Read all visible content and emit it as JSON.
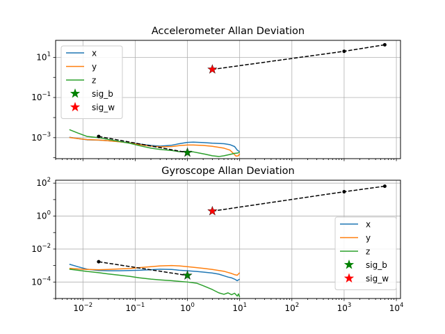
{
  "chart_data": [
    {
      "type": "line",
      "title": "Accelerometer Allan Deviation",
      "xscale": "log",
      "yscale": "log",
      "xlim": [
        0.003,
        12000
      ],
      "ylim": [
        9e-05,
        70
      ],
      "grid": true,
      "legend_loc": "upper left",
      "xtick_labels": [],
      "ytick_labels": [
        {
          "value": 0.001,
          "base": "10",
          "exp": "−3"
        },
        {
          "value": 0.1,
          "base": "10",
          "exp": "−1"
        },
        {
          "value": 10,
          "base": "10",
          "exp": "1"
        }
      ],
      "series": [
        {
          "name": "x",
          "color": "#1f77b4",
          "x": [
            0.0055,
            0.008,
            0.012,
            0.02,
            0.03,
            0.05,
            0.08,
            0.12,
            0.2,
            0.3,
            0.5,
            0.7,
            1.0,
            1.3,
            2.0,
            3.0,
            5.0,
            6.5,
            8.0,
            9.0,
            10.0
          ],
          "y": [
            0.00105,
            0.0009,
            0.00078,
            0.00075,
            0.0007,
            0.00063,
            0.00055,
            0.00048,
            0.00041,
            0.00038,
            0.00042,
            0.0005,
            0.00058,
            0.0006,
            0.00057,
            0.00053,
            0.0005,
            0.00045,
            0.00036,
            0.00024,
            0.0002
          ]
        },
        {
          "name": "y",
          "color": "#ff7f0e",
          "x": [
            0.0055,
            0.008,
            0.012,
            0.02,
            0.03,
            0.05,
            0.08,
            0.12,
            0.2,
            0.3,
            0.5,
            0.7,
            1.0,
            1.3,
            2.0,
            3.0,
            5.0,
            6.5,
            7.5,
            8.5,
            9.5,
            10.0
          ],
          "y": [
            0.00102,
            0.0009,
            0.0008,
            0.00076,
            0.0007,
            0.00062,
            0.00054,
            0.00045,
            0.00038,
            0.00035,
            0.00036,
            0.0004,
            0.00043,
            0.00043,
            0.00041,
            0.00037,
            0.0003,
            0.00024,
            0.00017,
            0.00012,
            0.000125,
            0.00016
          ]
        },
        {
          "name": "z",
          "color": "#2ca02c",
          "x": [
            0.0055,
            0.008,
            0.012,
            0.02,
            0.03,
            0.05,
            0.08,
            0.12,
            0.2,
            0.3,
            0.5,
            0.7,
            1.0,
            1.3,
            1.7,
            2.2,
            3.0,
            4.0,
            5.0,
            6.5,
            8.0,
            9.0,
            10.0
          ],
          "y": [
            0.0025,
            0.0017,
            0.00115,
            0.001,
            0.00082,
            0.00065,
            0.00052,
            0.0004,
            0.0003,
            0.00026,
            0.00023,
            0.0002,
            0.0002,
            0.000195,
            0.00017,
            0.00015,
            0.000125,
            0.000115,
            0.000125,
            0.000145,
            0.000165,
            0.00017,
            0.000185
          ]
        },
        {
          "name": "",
          "color": "#000000",
          "dashed": true,
          "markers": true,
          "x": [
            0.02,
            1.0
          ],
          "y": [
            0.00115,
            0.00018
          ]
        },
        {
          "name": "",
          "color": "#000000",
          "dashed": true,
          "markers": true,
          "x": [
            3.0,
            1000,
            6000
          ],
          "y": [
            2.5,
            20,
            42
          ]
        }
      ],
      "points": [
        {
          "name": "sig_b",
          "color": "#008000",
          "x": 1.0,
          "y": 0.00018
        },
        {
          "name": "sig_w",
          "color": "#ff0000",
          "x": 3.0,
          "y": 2.5
        }
      ]
    },
    {
      "type": "line",
      "title": "Gyroscope Allan Deviation",
      "xscale": "log",
      "yscale": "log",
      "xlim": [
        0.003,
        12000
      ],
      "ylim": [
        1e-05,
        150
      ],
      "grid": true,
      "legend_loc": "lower right",
      "xtick_labels": [
        {
          "value": 0.01,
          "base": "10",
          "exp": "−2"
        },
        {
          "value": 0.1,
          "base": "10",
          "exp": "−1"
        },
        {
          "value": 1,
          "base": "10",
          "exp": "0"
        },
        {
          "value": 10,
          "base": "10",
          "exp": "1"
        },
        {
          "value": 100,
          "base": "10",
          "exp": "2"
        },
        {
          "value": 1000,
          "base": "10",
          "exp": "3"
        },
        {
          "value": 10000,
          "base": "10",
          "exp": "4"
        }
      ],
      "ytick_labels": [
        {
          "value": 0.0001,
          "base": "10",
          "exp": "−4"
        },
        {
          "value": 0.01,
          "base": "10",
          "exp": "−2"
        },
        {
          "value": 1,
          "base": "10",
          "exp": "0"
        },
        {
          "value": 100,
          "base": "10",
          "exp": "2"
        }
      ],
      "series": [
        {
          "name": "x",
          "color": "#1f77b4",
          "x": [
            0.0055,
            0.008,
            0.012,
            0.02,
            0.03,
            0.05,
            0.08,
            0.12,
            0.2,
            0.3,
            0.5,
            0.7,
            1.0,
            1.5,
            2.0,
            3.0,
            4.0,
            5.0,
            6.0,
            7.0,
            8.0,
            9.0,
            10.0
          ],
          "y": [
            0.0012,
            0.00085,
            0.0006,
            0.0005,
            0.00048,
            0.00048,
            0.0005,
            0.00052,
            0.00056,
            0.0006,
            0.00058,
            0.00052,
            0.00048,
            0.00044,
            0.0004,
            0.00035,
            0.0003,
            0.00024,
            0.0002,
            0.00018,
            0.00015,
            0.00012,
            0.00015
          ]
        },
        {
          "name": "y",
          "color": "#ff7f0e",
          "x": [
            0.0055,
            0.008,
            0.012,
            0.02,
            0.03,
            0.05,
            0.08,
            0.12,
            0.2,
            0.3,
            0.5,
            0.7,
            1.0,
            1.5,
            2.0,
            3.0,
            4.0,
            5.0,
            6.0,
            7.0,
            8.0,
            9.0,
            10.0
          ],
          "y": [
            0.00068,
            0.00062,
            0.00058,
            0.00056,
            0.00058,
            0.00062,
            0.00066,
            0.00075,
            0.00085,
            0.00095,
            0.001,
            0.00095,
            0.00085,
            0.00075,
            0.00068,
            0.00058,
            0.0005,
            0.00045,
            0.00038,
            0.00033,
            0.00028,
            0.00026,
            0.00037
          ]
        },
        {
          "name": "z",
          "color": "#2ca02c",
          "x": [
            0.0055,
            0.008,
            0.012,
            0.02,
            0.03,
            0.05,
            0.08,
            0.12,
            0.2,
            0.3,
            0.5,
            0.7,
            1.0,
            1.5,
            2.0,
            3.0,
            4.0,
            5.0,
            6.0,
            7.0,
            8.0,
            9.0,
            9.5,
            10.0
          ],
          "y": [
            0.0006,
            0.00052,
            0.00044,
            0.00037,
            0.00031,
            0.00026,
            0.00022,
            0.00018,
            0.00015,
            0.000135,
            0.00012,
            0.00011,
            0.0001,
            8.5e-05,
            6e-05,
            3.5e-05,
            2.2e-05,
            1.8e-05,
            2.2e-05,
            1.7e-05,
            2.1e-05,
            1.4e-05,
            1.9e-05,
            1.2e-05
          ]
        },
        {
          "name": "",
          "color": "#000000",
          "dashed": true,
          "markers": true,
          "x": [
            0.02,
            1.0
          ],
          "y": [
            0.0017,
            0.00025
          ]
        },
        {
          "name": "",
          "color": "#000000",
          "dashed": true,
          "markers": true,
          "x": [
            3.0,
            1000,
            6000
          ],
          "y": [
            2.0,
            30,
            65
          ]
        }
      ],
      "points": [
        {
          "name": "sig_b",
          "color": "#008000",
          "x": 1.0,
          "y": 0.00025
        },
        {
          "name": "sig_w",
          "color": "#ff0000",
          "x": 3.0,
          "y": 2.0
        }
      ]
    }
  ]
}
